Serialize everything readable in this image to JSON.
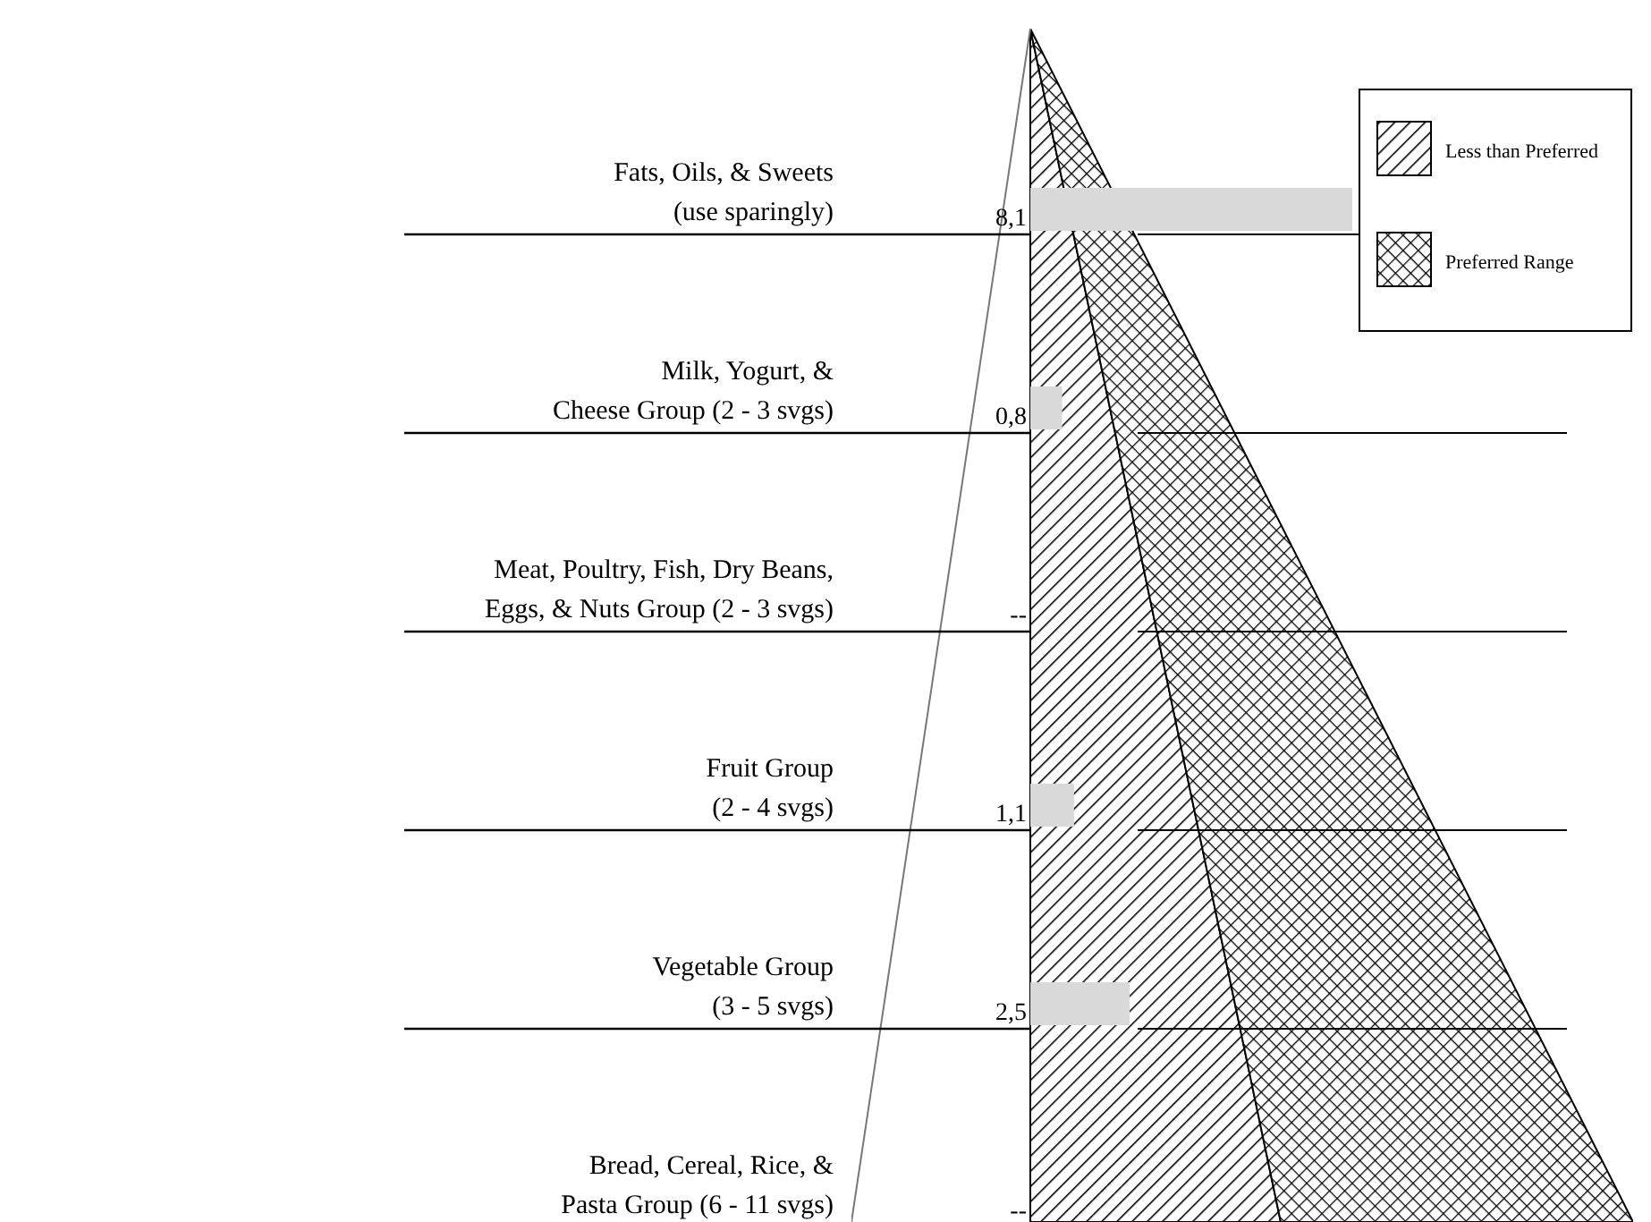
{
  "chart_data": {
    "type": "bar",
    "orientation": "horizontal",
    "color": "#d9d9d9",
    "categories": [
      "Fats, Oils, & Sweets\n(use sparingly)",
      "Milk, Yogurt, &\nCheese Group (2 - 3 svgs)",
      "Meat, Poultry, Fish, Dry Beans,\nEggs, & Nuts Group (2 - 3 svgs)",
      "Fruit Group\n(2 - 4 svgs)",
      "Vegetable Group\n(3 - 5 svgs)",
      "Bread, Cereal, Rice, &\nPasta Group (6 - 11 svgs)"
    ],
    "values": [
      8.1,
      0.8,
      null,
      1.1,
      2.5,
      null
    ],
    "value_labels": [
      "8,1",
      "0,8",
      "--",
      "1,1",
      "2,5",
      "--"
    ],
    "annotations": [
      "Less than Preferred",
      "Preferred Range"
    ]
  }
}
